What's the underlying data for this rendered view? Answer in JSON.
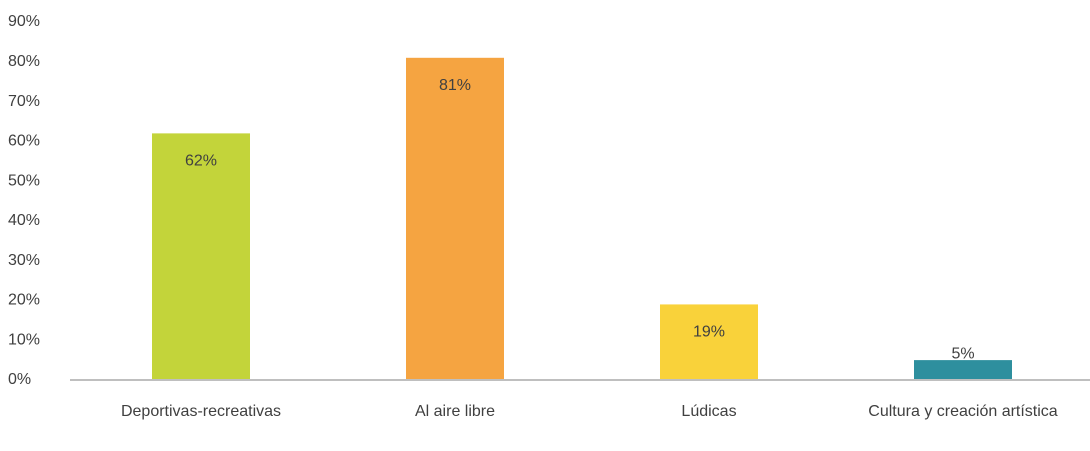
{
  "chart_data": {
    "type": "bar",
    "categories": [
      "Deportivas-recreativas",
      "Al aire libre",
      "Lúdicas",
      "Cultura y creación artística"
    ],
    "values": [
      62,
      81,
      19,
      5
    ],
    "value_labels": [
      "62%",
      "81%",
      "19%",
      "5%"
    ],
    "colors": [
      "#c3d43a",
      "#f5a441",
      "#f9d23a",
      "#2e8f9e"
    ],
    "ylim": [
      0,
      90
    ],
    "yticks": [
      {
        "value": 0,
        "label": "0%"
      },
      {
        "value": 10,
        "label": "10%"
      },
      {
        "value": 20,
        "label": "20%"
      },
      {
        "value": 30,
        "label": "30%"
      },
      {
        "value": 40,
        "label": "40%"
      },
      {
        "value": 50,
        "label": "50%"
      },
      {
        "value": 60,
        "label": "60%"
      },
      {
        "value": 70,
        "label": "70%"
      },
      {
        "value": 80,
        "label": "80%"
      },
      {
        "value": 90,
        "label": "90%"
      }
    ],
    "grid": false
  }
}
